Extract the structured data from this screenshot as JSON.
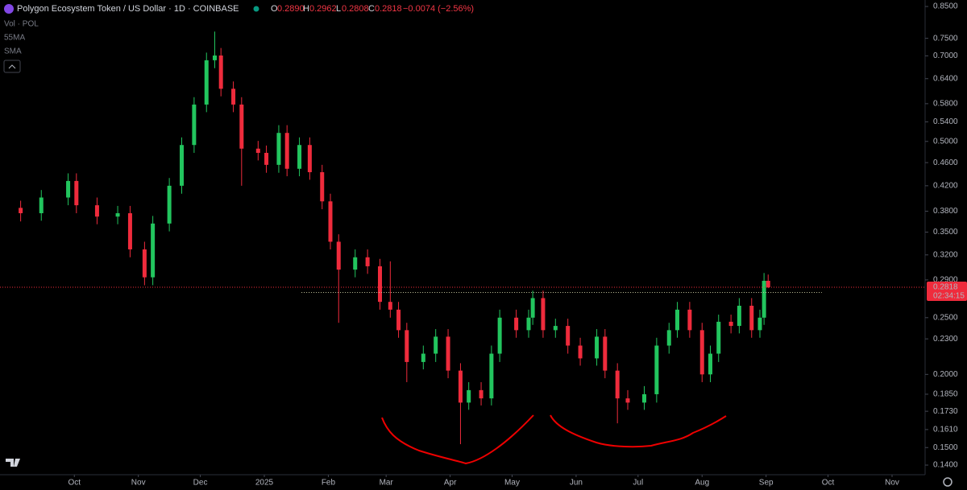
{
  "header": {
    "symbol": "Polygon Ecosystem Token / US Dollar · 1D · COINBASE",
    "o_label": "O",
    "o_value": "0.2890",
    "h_label": "H",
    "h_value": "0.2962",
    "l_label": "L",
    "l_value": "0.2808",
    "c_label": "C",
    "c_value": "0.2818",
    "change": "−0.0074 (−2.56%)",
    "indicators": [
      "Vol · POL",
      "55MA",
      "SMA"
    ]
  },
  "chart_data": {
    "type": "candlestick",
    "log_scale": true,
    "up_color": "#22c55e",
    "down_color": "#ef2b3c",
    "x": [
      -26,
      -16,
      -3,
      1,
      11,
      21,
      27,
      34,
      38,
      46,
      52,
      58,
      64,
      68,
      71,
      77,
      81,
      89,
      93,
      99,
      103,
      109,
      114,
      120,
      124,
      128,
      136,
      142,
      148,
      153,
      157,
      161,
      169,
      175,
      181,
      187,
      191,
      197,
      202,
      206,
      214,
      220,
      222,
      227,
      233,
      239,
      245,
      253,
      257,
      263,
      268,
      276,
      282,
      288,
      292,
      298,
      304,
      308,
      312,
      318,
      322,
      328,
      332,
      334,
      336
    ],
    "open": [
      0.385,
      0.377,
      0.401,
      0.428,
      0.389,
      0.372,
      0.377,
      0.327,
      0.293,
      0.362,
      0.42,
      0.493,
      0.578,
      0.688,
      0.701,
      0.615,
      0.578,
      0.486,
      0.478,
      0.456,
      0.517,
      0.449,
      0.493,
      0.443,
      0.395,
      0.337,
      0.302,
      0.317,
      0.306,
      0.266,
      0.258,
      0.238,
      0.21,
      0.217,
      0.232,
      0.203,
      0.179,
      0.188,
      0.182,
      0.217,
      0.25,
      0.238,
      0.25,
      0.27,
      0.238,
      0.242,
      0.224,
      0.213,
      0.232,
      0.203,
      0.182,
      0.179,
      0.185,
      0.224,
      0.238,
      0.258,
      0.238,
      0.2,
      0.217,
      0.246,
      0.242,
      0.262,
      0.238,
      0.25,
      0.289
    ],
    "high": [
      0.396,
      0.413,
      0.441,
      0.441,
      0.401,
      0.388,
      0.388,
      0.337,
      0.373,
      0.433,
      0.508,
      0.595,
      0.709,
      0.77,
      0.722,
      0.633,
      0.595,
      0.501,
      0.492,
      0.533,
      0.533,
      0.508,
      0.508,
      0.456,
      0.407,
      0.347,
      0.327,
      0.327,
      0.315,
      0.312,
      0.266,
      0.245,
      0.224,
      0.239,
      0.239,
      0.209,
      0.194,
      0.194,
      0.224,
      0.258,
      0.258,
      0.258,
      0.278,
      0.278,
      0.249,
      0.249,
      0.231,
      0.239,
      0.239,
      0.209,
      0.188,
      0.191,
      0.231,
      0.245,
      0.266,
      0.266,
      0.245,
      0.224,
      0.253,
      0.253,
      0.27,
      0.27,
      0.258,
      0.298,
      0.2962
    ],
    "low": [
      0.365,
      0.366,
      0.389,
      0.377,
      0.361,
      0.361,
      0.317,
      0.284,
      0.284,
      0.351,
      0.407,
      0.478,
      0.561,
      0.667,
      0.597,
      0.561,
      0.42,
      0.464,
      0.442,
      0.442,
      0.436,
      0.436,
      0.43,
      0.383,
      0.327,
      0.245,
      0.293,
      0.297,
      0.258,
      0.25,
      0.231,
      0.194,
      0.204,
      0.21,
      0.197,
      0.152,
      0.174,
      0.177,
      0.177,
      0.21,
      0.231,
      0.231,
      0.243,
      0.231,
      0.231,
      0.217,
      0.207,
      0.207,
      0.197,
      0.165,
      0.174,
      0.174,
      0.179,
      0.217,
      0.231,
      0.231,
      0.194,
      0.194,
      0.21,
      0.235,
      0.235,
      0.231,
      0.231,
      0.243,
      0.2808
    ],
    "close": [
      0.377,
      0.401,
      0.428,
      0.389,
      0.372,
      0.377,
      0.327,
      0.293,
      0.362,
      0.42,
      0.493,
      0.578,
      0.688,
      0.701,
      0.615,
      0.578,
      0.486,
      0.478,
      0.456,
      0.517,
      0.449,
      0.493,
      0.443,
      0.395,
      0.337,
      0.302,
      0.317,
      0.306,
      0.266,
      0.258,
      0.238,
      0.21,
      0.217,
      0.232,
      0.203,
      0.179,
      0.188,
      0.182,
      0.217,
      0.25,
      0.238,
      0.25,
      0.27,
      0.238,
      0.242,
      0.224,
      0.213,
      0.232,
      0.203,
      0.182,
      0.179,
      0.185,
      0.224,
      0.238,
      0.258,
      0.238,
      0.2,
      0.217,
      0.246,
      0.242,
      0.262,
      0.238,
      0.25,
      0.289,
      0.2818
    ],
    "xlim": [
      -36,
      412
    ],
    "xticks": [
      {
        "value": 0,
        "label": "Oct"
      },
      {
        "value": 31,
        "label": "Nov"
      },
      {
        "value": 61,
        "label": "Dec"
      },
      {
        "value": 92,
        "label": "2025"
      },
      {
        "value": 123,
        "label": "Feb"
      },
      {
        "value": 151,
        "label": "Mar"
      },
      {
        "value": 182,
        "label": "Apr"
      },
      {
        "value": 212,
        "label": "May"
      },
      {
        "value": 243,
        "label": "Jun"
      },
      {
        "value": 273,
        "label": "Jul"
      },
      {
        "value": 304,
        "label": "Aug"
      },
      {
        "value": 335,
        "label": "Sep"
      },
      {
        "value": 365,
        "label": "Oct"
      },
      {
        "value": 396,
        "label": "Nov"
      }
    ],
    "ylim": [
      0.1348,
      0.872
    ],
    "yticks": [
      {
        "value": 0.85,
        "label": "0.8500"
      },
      {
        "value": 0.75,
        "label": "0.7500"
      },
      {
        "value": 0.7,
        "label": "0.7000"
      },
      {
        "value": 0.64,
        "label": "0.6400"
      },
      {
        "value": 0.58,
        "label": "0.5800"
      },
      {
        "value": 0.54,
        "label": "0.5400"
      },
      {
        "value": 0.5,
        "label": "0.5000"
      },
      {
        "value": 0.46,
        "label": "0.4600"
      },
      {
        "value": 0.42,
        "label": "0.4200"
      },
      {
        "value": 0.38,
        "label": "0.3800"
      },
      {
        "value": 0.35,
        "label": "0.3500"
      },
      {
        "value": 0.32,
        "label": "0.3200"
      },
      {
        "value": 0.29,
        "label": "0.2900"
      },
      {
        "value": 0.25,
        "label": "0.2500"
      },
      {
        "value": 0.23,
        "label": "0.2300"
      },
      {
        "value": 0.2,
        "label": "0.2000"
      },
      {
        "value": 0.185,
        "label": "0.1850"
      },
      {
        "value": 0.173,
        "label": "0.1730"
      },
      {
        "value": 0.161,
        "label": "0.1610"
      },
      {
        "value": 0.15,
        "label": "0.1500"
      },
      {
        "value": 0.14,
        "label": "0.1400"
      }
    ],
    "last_price_label": "0.2818",
    "countdown": "02:34:15",
    "neckline": {
      "value": 0.276,
      "x": [
        110,
        362
      ]
    }
  }
}
